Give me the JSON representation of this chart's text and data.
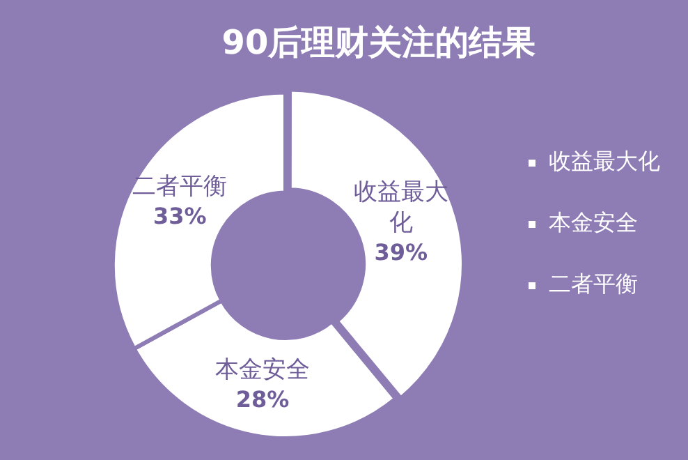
{
  "chart_data": {
    "type": "donut",
    "title": "90后理财关注的结果",
    "categories": [
      "收益最大化",
      "本金安全",
      "二者平衡"
    ],
    "values": [
      39,
      28,
      33
    ],
    "value_labels": [
      "收益最大化\n39%",
      "本金安全\n28%",
      "二者平衡\n33%"
    ],
    "colors": [
      "#ffffff",
      "#ffffff",
      "#ffffff"
    ],
    "legend": "right"
  }
}
